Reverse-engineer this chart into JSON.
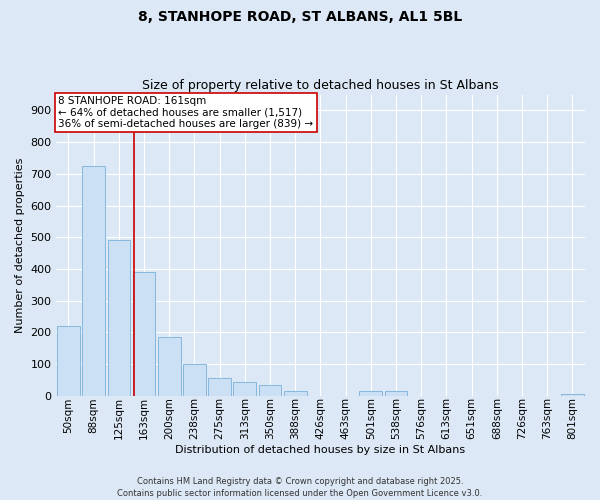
{
  "title": "8, STANHOPE ROAD, ST ALBANS, AL1 5BL",
  "subtitle": "Size of property relative to detached houses in St Albans",
  "xlabel": "Distribution of detached houses by size in St Albans",
  "ylabel": "Number of detached properties",
  "footer": "Contains HM Land Registry data © Crown copyright and database right 2025.\nContains public sector information licensed under the Open Government Licence v3.0.",
  "bar_color": "#cce0f5",
  "bar_edge_color": "#7ab0d8",
  "annotation_text_line1": "8 STANHOPE ROAD: 161sqm",
  "annotation_text_line2": "← 64% of detached houses are smaller (1,517)",
  "annotation_text_line3": "36% of semi-detached houses are larger (839) →",
  "categories": [
    "50sqm",
    "88sqm",
    "125sqm",
    "163sqm",
    "200sqm",
    "238sqm",
    "275sqm",
    "313sqm",
    "350sqm",
    "388sqm",
    "426sqm",
    "463sqm",
    "501sqm",
    "538sqm",
    "576sqm",
    "613sqm",
    "651sqm",
    "688sqm",
    "726sqm",
    "763sqm",
    "801sqm"
  ],
  "values": [
    220,
    725,
    490,
    390,
    185,
    100,
    55,
    45,
    35,
    15,
    0,
    0,
    15,
    15,
    0,
    0,
    0,
    0,
    0,
    0,
    5
  ],
  "ylim": [
    0,
    950
  ],
  "yticks": [
    0,
    100,
    200,
    300,
    400,
    500,
    600,
    700,
    800,
    900
  ],
  "background_color": "#dce8f5",
  "grid_color": "#ffffff",
  "annotation_box_facecolor": "#ffffff",
  "annotation_box_edgecolor": "#cc0000",
  "red_line_color": "#cc0000",
  "title_fontsize": 10,
  "subtitle_fontsize": 9,
  "ylabel_fontsize": 8,
  "xlabel_fontsize": 8,
  "tick_fontsize": 8,
  "footer_fontsize": 6,
  "annotation_fontsize": 7.5
}
